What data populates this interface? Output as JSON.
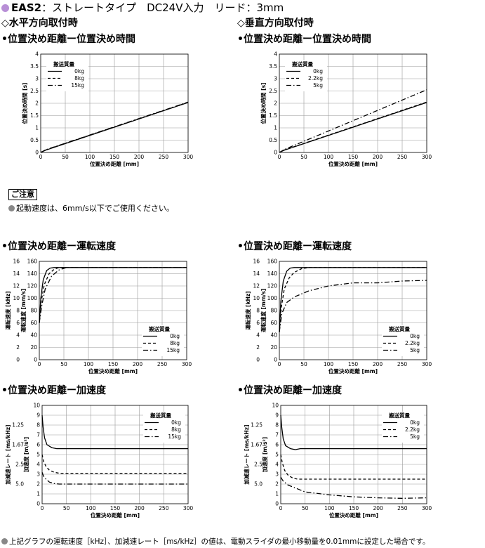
{
  "header": {
    "model": "EAS2",
    "rest": "：ストレートタイプ　DC24V入力　リード：3mm"
  },
  "orientation": {
    "horizontal": "◇水平方向取付時",
    "vertical": "◇垂直方向取付時"
  },
  "sections": {
    "position_time": "•位置決め距離ー位置決め時間",
    "speed": "•位置決め距離ー運転速度",
    "accel": "•位置決め距離ー加速度"
  },
  "caution": {
    "title": "ご注意",
    "text": "起動速度は、6mm/s以下でご使用ください。"
  },
  "footnote": "上記グラフの運転速度［kHz］、加減速レート［ms/kHz］の値は、電動スライダの最小移動量を0.01mmに設定した場合です。",
  "chart_data": [
    {
      "id": "time-horizontal",
      "type": "line",
      "xlabel": "位置決め距離 [mm]",
      "ylabel": "位置決め時間 [s]",
      "xlim": [
        0,
        300
      ],
      "ylim": [
        0,
        4.0
      ],
      "xticks": [
        0,
        50,
        100,
        150,
        200,
        250,
        300
      ],
      "yticks": [
        0,
        0.5,
        1.0,
        1.5,
        2.0,
        2.5,
        3.0,
        3.5,
        4.0
      ],
      "legend_title": "搬送質量",
      "legend_position": "top-left",
      "series": [
        {
          "name": "0kg",
          "style": "solid",
          "x": [
            0,
            10,
            300
          ],
          "y": [
            0,
            0.09,
            2.03
          ]
        },
        {
          "name": "8kg",
          "style": "dash",
          "x": [
            0,
            10,
            300
          ],
          "y": [
            0,
            0.1,
            2.04
          ]
        },
        {
          "name": "15kg",
          "style": "dashdot",
          "x": [
            0,
            10,
            300
          ],
          "y": [
            0,
            0.11,
            2.05
          ]
        }
      ]
    },
    {
      "id": "time-vertical",
      "type": "line",
      "xlabel": "位置決め距離 [mm]",
      "ylabel": "位置決め時間 [s]",
      "xlim": [
        0,
        300
      ],
      "ylim": [
        0,
        4.0
      ],
      "xticks": [
        0,
        50,
        100,
        150,
        200,
        250,
        300
      ],
      "yticks": [
        0,
        0.5,
        1.0,
        1.5,
        2.0,
        2.5,
        3.0,
        3.5,
        4.0
      ],
      "legend_title": "搬送質量",
      "legend_position": "top-left",
      "series": [
        {
          "name": "0kg",
          "style": "solid",
          "x": [
            0,
            10,
            300
          ],
          "y": [
            0,
            0.09,
            2.03
          ]
        },
        {
          "name": "2.2kg",
          "style": "dash",
          "x": [
            0,
            10,
            300
          ],
          "y": [
            0,
            0.1,
            2.05
          ]
        },
        {
          "name": "5kg",
          "style": "dashdot",
          "x": [
            0,
            10,
            300
          ],
          "y": [
            0,
            0.12,
            2.55
          ]
        }
      ]
    },
    {
      "id": "speed-horizontal",
      "type": "line",
      "xlabel": "位置決め距離 [mm]",
      "ylabel": "運転速度 [mm/s]",
      "ylabel2": "運転速度 [kHz]",
      "xlim": [
        0,
        300
      ],
      "ylim": [
        0,
        160
      ],
      "xticks": [
        0,
        50,
        100,
        150,
        200,
        250,
        300
      ],
      "yticks": [
        0,
        20,
        40,
        60,
        80,
        100,
        120,
        140,
        160
      ],
      "yticks2": [
        0,
        2,
        4,
        6,
        8,
        10,
        12,
        14,
        16
      ],
      "legend_title": "搬送質量",
      "legend_position": "bottom-right",
      "series": [
        {
          "name": "0kg",
          "style": "solid",
          "x": [
            0,
            3,
            8,
            15,
            22,
            30,
            300
          ],
          "y": [
            60,
            100,
            130,
            145,
            149,
            150,
            150
          ]
        },
        {
          "name": "8kg",
          "style": "dash",
          "x": [
            0,
            4,
            10,
            20,
            30,
            40,
            300
          ],
          "y": [
            60,
            95,
            122,
            140,
            147,
            150,
            150
          ]
        },
        {
          "name": "15kg",
          "style": "dashdot",
          "x": [
            0,
            5,
            12,
            25,
            40,
            55,
            300
          ],
          "y": [
            60,
            88,
            115,
            136,
            146,
            150,
            150
          ]
        }
      ]
    },
    {
      "id": "speed-vertical",
      "type": "line",
      "xlabel": "位置決め距離 [mm]",
      "ylabel": "運転速度 [mm/s]",
      "ylabel2": "運転速度 [kHz]",
      "xlim": [
        0,
        300
      ],
      "ylim": [
        0,
        160
      ],
      "xticks": [
        0,
        50,
        100,
        150,
        200,
        250,
        300
      ],
      "yticks": [
        0,
        20,
        40,
        60,
        80,
        100,
        120,
        140,
        160
      ],
      "yticks2": [
        0,
        2,
        4,
        6,
        8,
        10,
        12,
        14,
        16
      ],
      "legend_title": "搬送質量",
      "legend_position": "bottom-right",
      "series": [
        {
          "name": "0kg",
          "style": "solid",
          "x": [
            0,
            3,
            8,
            15,
            22,
            30,
            300
          ],
          "y": [
            45,
            95,
            128,
            144,
            149,
            150,
            150
          ]
        },
        {
          "name": "2.2kg",
          "style": "dash",
          "x": [
            0,
            4,
            10,
            20,
            30,
            45,
            60,
            300
          ],
          "y": [
            45,
            85,
            115,
            133,
            142,
            148,
            150,
            150
          ]
        },
        {
          "name": "5kg",
          "style": "dashdot",
          "x": [
            0,
            5,
            15,
            30,
            60,
            100,
            150,
            200,
            250,
            300
          ],
          "y": [
            45,
            75,
            93,
            102,
            112,
            120,
            125,
            125,
            128,
            129
          ]
        }
      ]
    },
    {
      "id": "accel-horizontal",
      "type": "line",
      "xlabel": "位置決め距離 [mm]",
      "ylabel": "加速度 [m/s²]",
      "ylabel2": "加減速レート [ms/kHz]",
      "xlim": [
        0,
        300
      ],
      "ylim": [
        0,
        10
      ],
      "xticks": [
        0,
        50,
        100,
        150,
        200,
        250,
        300
      ],
      "yticks": [
        0,
        1,
        2,
        3,
        4,
        5,
        6,
        7,
        8,
        9,
        10
      ],
      "yticks2_labels": [
        "5.0",
        "2.5",
        "1.67",
        "1.25"
      ],
      "yticks2_at": [
        2,
        4,
        6,
        8
      ],
      "legend_title": "搬送質量",
      "legend_position": "top-right",
      "series": [
        {
          "name": "0kg",
          "style": "solid",
          "x": [
            0,
            2,
            5,
            10,
            20,
            30,
            300
          ],
          "y": [
            9,
            7.8,
            6.7,
            6.0,
            5.7,
            5.6,
            5.6
          ]
        },
        {
          "name": "8kg",
          "style": "dash",
          "x": [
            0,
            3,
            8,
            15,
            25,
            35,
            300
          ],
          "y": [
            5.0,
            4.3,
            3.8,
            3.4,
            3.2,
            3.1,
            3.1
          ]
        },
        {
          "name": "15kg",
          "style": "dashdot",
          "x": [
            0,
            3,
            8,
            15,
            25,
            35,
            300
          ],
          "y": [
            3.2,
            2.8,
            2.5,
            2.2,
            2.05,
            2.0,
            2.0
          ]
        }
      ]
    },
    {
      "id": "accel-vertical",
      "type": "line",
      "xlabel": "位置決め距離 [mm]",
      "ylabel": "加速度 [m/s²]",
      "ylabel2": "加減速レート [ms/kHz]",
      "xlim": [
        0,
        300
      ],
      "ylim": [
        0,
        10
      ],
      "xticks": [
        0,
        50,
        100,
        150,
        200,
        250,
        300
      ],
      "yticks": [
        0,
        1,
        2,
        3,
        4,
        5,
        6,
        7,
        8,
        9,
        10
      ],
      "yticks2_labels": [
        "5.0",
        "2.5",
        "1.67",
        "1.25"
      ],
      "yticks2_at": [
        2,
        4,
        6,
        8
      ],
      "legend_title": "搬送質量",
      "legend_position": "top-right",
      "series": [
        {
          "name": "0kg",
          "style": "solid",
          "x": [
            0,
            2,
            5,
            10,
            20,
            30,
            40,
            300
          ],
          "y": [
            9,
            7.8,
            6.6,
            5.9,
            5.6,
            5.5,
            5.6,
            5.6
          ]
        },
        {
          "name": "2.2kg",
          "style": "dash",
          "x": [
            0,
            3,
            8,
            15,
            25,
            35,
            300
          ],
          "y": [
            5.0,
            4.2,
            3.4,
            2.9,
            2.6,
            2.5,
            2.5
          ]
        },
        {
          "name": "5kg",
          "style": "dashdot",
          "x": [
            0,
            5,
            15,
            30,
            50,
            100,
            150,
            200,
            250,
            300
          ],
          "y": [
            2.7,
            2.3,
            1.9,
            1.6,
            1.2,
            0.9,
            0.7,
            0.6,
            0.55,
            0.6
          ]
        }
      ]
    }
  ]
}
